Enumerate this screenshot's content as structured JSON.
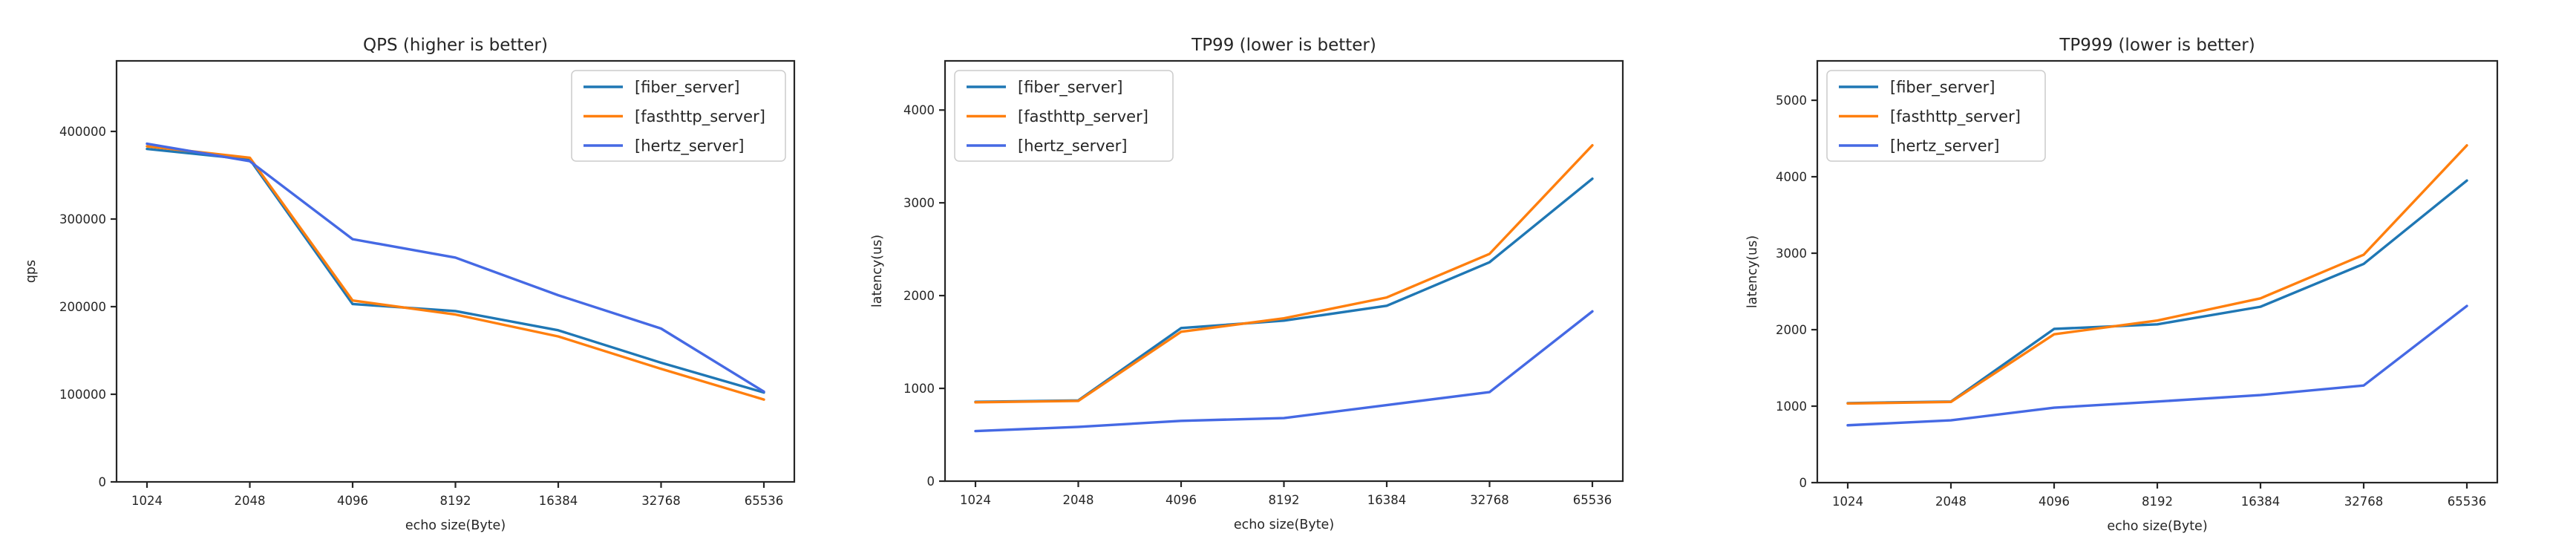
{
  "figure": {
    "background": "#ffffff",
    "text_color": "#262626"
  },
  "chart_data": [
    {
      "type": "line",
      "title": "QPS (higher is better)",
      "xlabel": "echo size(Byte)",
      "ylabel": "qps",
      "categories": [
        "1024",
        "2048",
        "4096",
        "8192",
        "16384",
        "32768",
        "65536"
      ],
      "yticks": [
        0,
        100000,
        200000,
        300000,
        400000
      ],
      "ylim": [
        0,
        480500
      ],
      "grid": false,
      "legend_position": "upper-right",
      "series": [
        {
          "name": "[fiber_server]",
          "color": "#1f77b4",
          "values": [
            380000,
            368000,
            203000,
            195000,
            173000,
            136000,
            102000
          ]
        },
        {
          "name": "[fasthttp_server]",
          "color": "#ff7f0e",
          "values": [
            383000,
            370000,
            207000,
            191000,
            166000,
            129000,
            94000
          ]
        },
        {
          "name": "[hertz_server]",
          "color": "#4569e4",
          "values": [
            386000,
            366000,
            277000,
            256000,
            213000,
            175000,
            103000
          ]
        }
      ]
    },
    {
      "type": "line",
      "title": "TP99 (lower is better)",
      "xlabel": "echo size(Byte)",
      "ylabel": "latency(us)",
      "categories": [
        "1024",
        "2048",
        "4096",
        "8192",
        "16384",
        "32768",
        "65536"
      ],
      "yticks": [
        0,
        1000,
        2000,
        3000,
        4000
      ],
      "ylim": [
        0,
        4530
      ],
      "grid": false,
      "legend_position": "upper-left",
      "series": [
        {
          "name": "[fiber_server]",
          "color": "#1f77b4",
          "values": [
            855,
            870,
            1650,
            1730,
            1890,
            2360,
            3260
          ]
        },
        {
          "name": "[fasthttp_server]",
          "color": "#ff7f0e",
          "values": [
            850,
            865,
            1610,
            1755,
            1980,
            2450,
            3620
          ]
        },
        {
          "name": "[hertz_server]",
          "color": "#4569e4",
          "values": [
            540,
            585,
            650,
            680,
            820,
            960,
            1830
          ]
        }
      ]
    },
    {
      "type": "line",
      "title": "TP999 (lower is better)",
      "xlabel": "echo size(Byte)",
      "ylabel": "latency(us)",
      "categories": [
        "1024",
        "2048",
        "4096",
        "8192",
        "16384",
        "32768",
        "65536"
      ],
      "yticks": [
        0,
        1000,
        2000,
        3000,
        4000,
        5000
      ],
      "ylim": [
        0,
        5515
      ],
      "grid": false,
      "legend_position": "upper-left",
      "series": [
        {
          "name": "[fiber_server]",
          "color": "#1f77b4",
          "values": [
            1040,
            1060,
            2010,
            2070,
            2300,
            2860,
            3950
          ]
        },
        {
          "name": "[fasthttp_server]",
          "color": "#ff7f0e",
          "values": [
            1035,
            1055,
            1940,
            2120,
            2410,
            2980,
            4410
          ]
        },
        {
          "name": "[hertz_server]",
          "color": "#4569e4",
          "values": [
            750,
            815,
            980,
            1060,
            1145,
            1270,
            2310
          ]
        }
      ]
    }
  ]
}
